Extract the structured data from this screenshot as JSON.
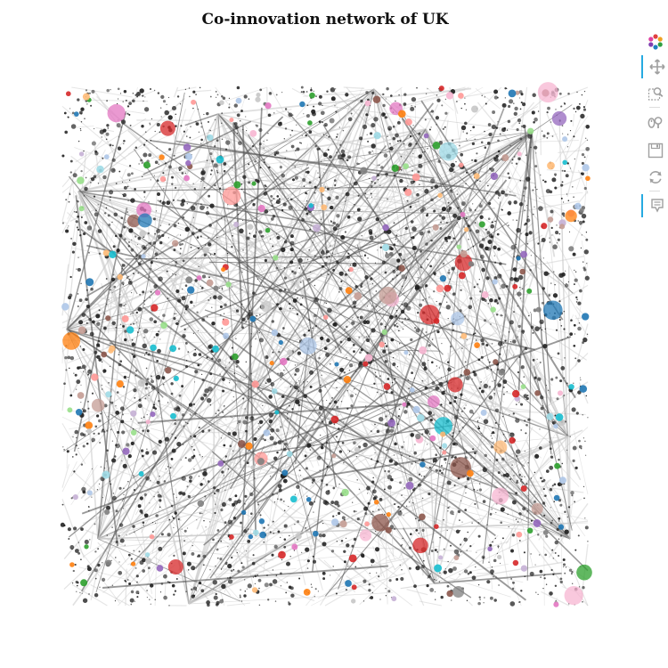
{
  "title": "Co-innovation network of UK",
  "colors": {
    "edge_dark": "#555555",
    "edge_light": "#c8c8c8",
    "node_small": "#222222",
    "palette": [
      "#1f77b4",
      "#aec7e8",
      "#ff7f0e",
      "#ffbb78",
      "#2ca02c",
      "#98df8a",
      "#d62728",
      "#ff9896",
      "#9467bd",
      "#c5b0d5",
      "#8c564b",
      "#c49c94",
      "#e377c2",
      "#f7b6d2",
      "#7f7f7f",
      "#c7c7c7",
      "#17becf",
      "#9edae5"
    ],
    "toolbar_accent": "#26aae1",
    "toolbar_icon": "#a0a0a0"
  },
  "toolbar": {
    "tools": [
      {
        "name": "bokeh-logo-icon",
        "active": false
      },
      {
        "name": "pan-icon",
        "active": true
      },
      {
        "name": "box-zoom-icon",
        "active": false
      },
      {
        "name": "wheel-zoom-icon",
        "active": false
      },
      {
        "name": "save-icon",
        "active": false
      },
      {
        "name": "reset-icon",
        "active": false
      },
      {
        "name": "hover-icon",
        "active": true
      }
    ]
  }
}
